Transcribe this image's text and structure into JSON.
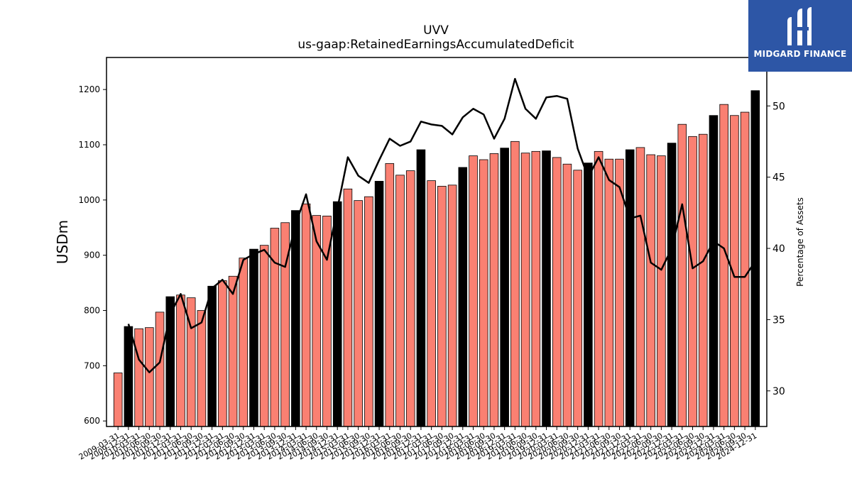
{
  "chart_data": {
    "type": "bar",
    "title": "UVV",
    "subtitle": "us-gaap:RetainedEarningsAccumulatedDeficit",
    "ylabel": "USDm",
    "y2label": "Percentage of Assets",
    "ylim": [
      590,
      1258
    ],
    "y2lim": [
      27.5,
      53.4
    ],
    "yticks": [
      600,
      700,
      800,
      900,
      1000,
      1100,
      1200
    ],
    "y2ticks": [
      30,
      35,
      40,
      45,
      50
    ],
    "colors": {
      "bar_regular": "#fa8072",
      "bar_fiscal_year_end": "#000000",
      "line": "#000000",
      "bar_edge": "#000000"
    },
    "categories": [
      "2009-03-31",
      "2009-12-31",
      "2010-03-31",
      "2010-06-30",
      "2010-09-30",
      "2010-12-31",
      "2011-03-31",
      "2011-06-30",
      "2011-09-30",
      "2011-12-31",
      "2012-03-31",
      "2012-06-30",
      "2012-09-30",
      "2012-12-31",
      "2013-03-31",
      "2013-06-30",
      "2013-09-30",
      "2013-12-31",
      "2014-03-31",
      "2014-06-30",
      "2014-09-30",
      "2014-12-31",
      "2015-03-31",
      "2015-06-30",
      "2015-09-30",
      "2015-12-31",
      "2016-03-31",
      "2016-06-30",
      "2016-09-30",
      "2016-12-31",
      "2017-03-31",
      "2017-06-30",
      "2017-09-30",
      "2017-12-31",
      "2018-03-31",
      "2018-06-30",
      "2018-09-30",
      "2018-12-31",
      "2019-03-31",
      "2019-06-30",
      "2019-09-30",
      "2019-12-31",
      "2020-03-31",
      "2020-06-30",
      "2020-09-30",
      "2020-12-31",
      "2021-03-31",
      "2021-06-30",
      "2021-09-30",
      "2021-12-31",
      "2022-03-31",
      "2022-06-30",
      "2022-09-30",
      "2022-12-31",
      "2023-03-31",
      "2023-06-30",
      "2023-09-30",
      "2023-12-31",
      "2024-03-31",
      "2024-06-30",
      "2024-09-30",
      "2024-12-31"
    ],
    "series": [
      {
        "kind": "bar",
        "values": [
          687,
          771,
          767,
          769,
          797,
          825,
          828,
          823,
          800,
          844,
          854,
          862,
          895,
          911,
          918,
          949,
          959,
          981,
          993,
          972,
          971,
          997,
          1020,
          999,
          1006,
          1034,
          1066,
          1045,
          1053,
          1091,
          1035,
          1025,
          1027,
          1059,
          1080,
          1073,
          1084,
          1094,
          1106,
          1085,
          1088,
          1089,
          1077,
          1065,
          1054,
          1067,
          1088,
          1074,
          1074,
          1091,
          1095,
          1082,
          1080,
          1103,
          1137,
          1115,
          1119,
          1153,
          1173,
          1153,
          1159,
          1198
        ],
        "fiscal_year_end": [
          false,
          true,
          false,
          false,
          false,
          true,
          false,
          false,
          false,
          true,
          false,
          false,
          false,
          true,
          false,
          false,
          false,
          true,
          false,
          false,
          false,
          true,
          false,
          false,
          false,
          true,
          false,
          false,
          false,
          true,
          false,
          false,
          false,
          true,
          false,
          false,
          false,
          true,
          false,
          false,
          false,
          true,
          false,
          false,
          false,
          true,
          false,
          false,
          false,
          true,
          false,
          false,
          false,
          true,
          false,
          false,
          false,
          true,
          false,
          false,
          false,
          true
        ]
      },
      {
        "kind": "line",
        "axis": "right",
        "values": [
          null,
          34.7,
          32.2,
          31.3,
          32.0,
          35.4,
          36.8,
          34.4,
          34.8,
          37.2,
          37.8,
          36.8,
          39.2,
          39.6,
          39.9,
          39.0,
          38.7,
          41.7,
          43.8,
          40.5,
          39.2,
          42.8,
          46.4,
          45.1,
          44.6,
          46.2,
          47.7,
          47.2,
          47.5,
          48.9,
          48.7,
          48.6,
          48.0,
          49.2,
          49.8,
          49.4,
          47.7,
          49.1,
          51.9,
          49.8,
          49.1,
          50.6,
          50.7,
          50.5,
          47.0,
          45.0,
          46.4,
          44.8,
          44.3,
          42.1,
          42.3,
          39.0,
          38.5,
          40.0,
          43.1,
          38.6,
          39.1,
          40.5,
          40.0,
          38.0,
          38.0,
          39.1
        ]
      }
    ]
  },
  "logo": {
    "text": "MIDGARD FINANCE",
    "icon": "midgard-m-logo-icon"
  }
}
